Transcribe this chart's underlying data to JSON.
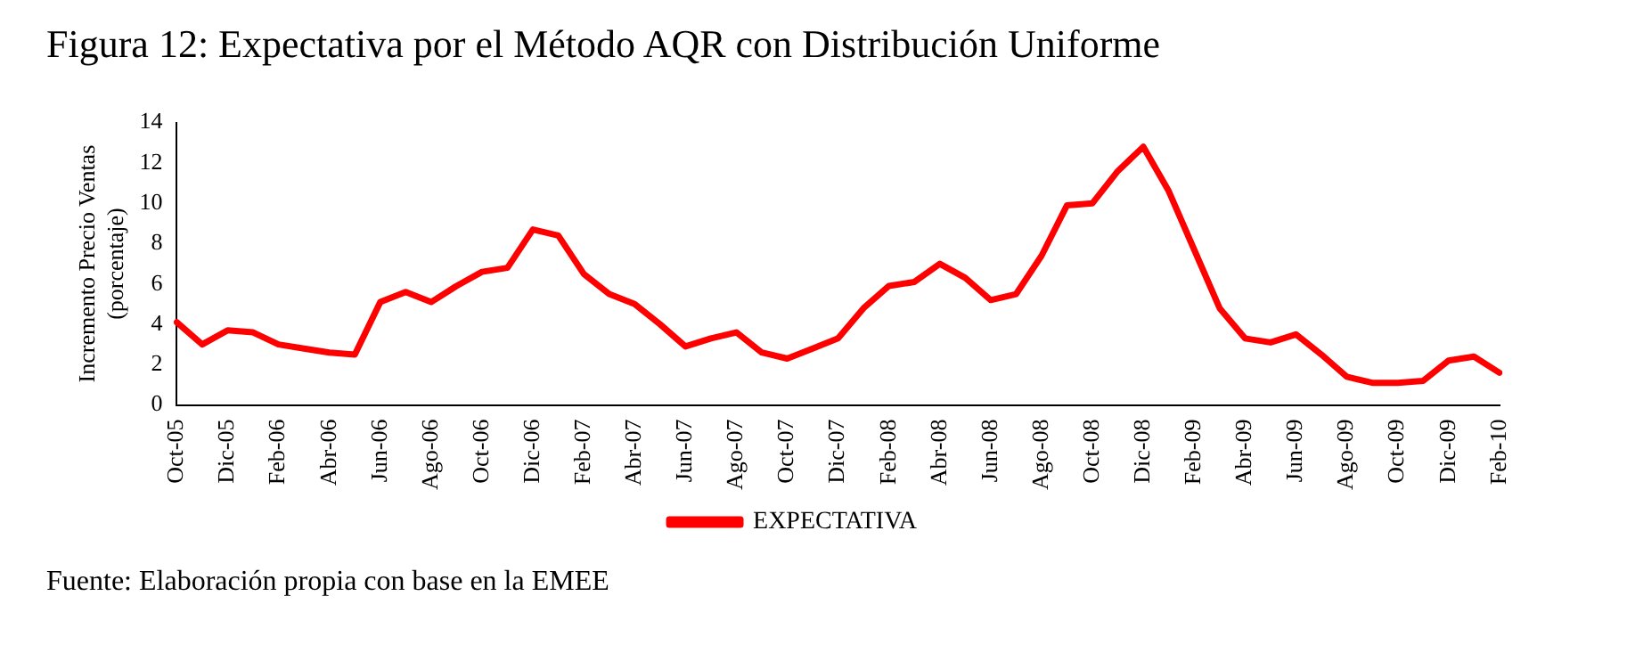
{
  "chart_data": {
    "type": "line",
    "title": "Figura 12: Expectativa por el Método AQR con Distribución Uniforme",
    "ylabel": "Incremento Precio Ventas\n(porcentaje)",
    "categories": [
      "Oct-05",
      null,
      "Dic-05",
      null,
      "Feb-06",
      null,
      "Abr-06",
      null,
      "Jun-06",
      null,
      "Ago-06",
      null,
      "Oct-06",
      null,
      "Dic-06",
      null,
      "Feb-07",
      null,
      "Abr-07",
      null,
      "Jun-07",
      null,
      "Ago-07",
      null,
      "Oct-07",
      null,
      "Dic-07",
      null,
      "Feb-08",
      null,
      "Abr-08",
      null,
      "Jun-08",
      null,
      "Ago-08",
      null,
      "Oct-08",
      null,
      "Dic-08",
      null,
      "Feb-09",
      null,
      "Abr-09",
      null,
      "Jun-09",
      null,
      "Ago-09",
      null,
      "Oct-09",
      null,
      "Dic-09",
      null,
      "Feb-10"
    ],
    "series": [
      {
        "name": "EXPECTATIVA",
        "color": "#ff0000",
        "values": [
          4.1,
          3.0,
          3.7,
          3.6,
          3.0,
          2.8,
          2.6,
          2.5,
          5.1,
          5.6,
          5.1,
          5.9,
          6.6,
          6.8,
          8.7,
          8.4,
          6.5,
          5.5,
          5.0,
          4.0,
          2.9,
          3.3,
          3.6,
          2.6,
          2.3,
          2.8,
          3.3,
          4.8,
          5.9,
          6.1,
          7.0,
          6.3,
          5.2,
          5.5,
          7.4,
          9.9,
          10.0,
          11.6,
          12.8,
          10.6,
          7.7,
          4.8,
          3.3,
          3.1,
          3.5,
          2.5,
          1.4,
          1.1,
          1.1,
          1.2,
          2.2,
          2.4,
          1.6
        ]
      }
    ],
    "ylim": [
      0,
      14
    ],
    "yticks": [
      0,
      2,
      4,
      6,
      8,
      10,
      12,
      14
    ],
    "grid": false,
    "legend": "bottom",
    "marker": "none",
    "line_style": "solid",
    "annotations": [
      "Fuente: Elaboración propia con base en la EMEE"
    ]
  }
}
